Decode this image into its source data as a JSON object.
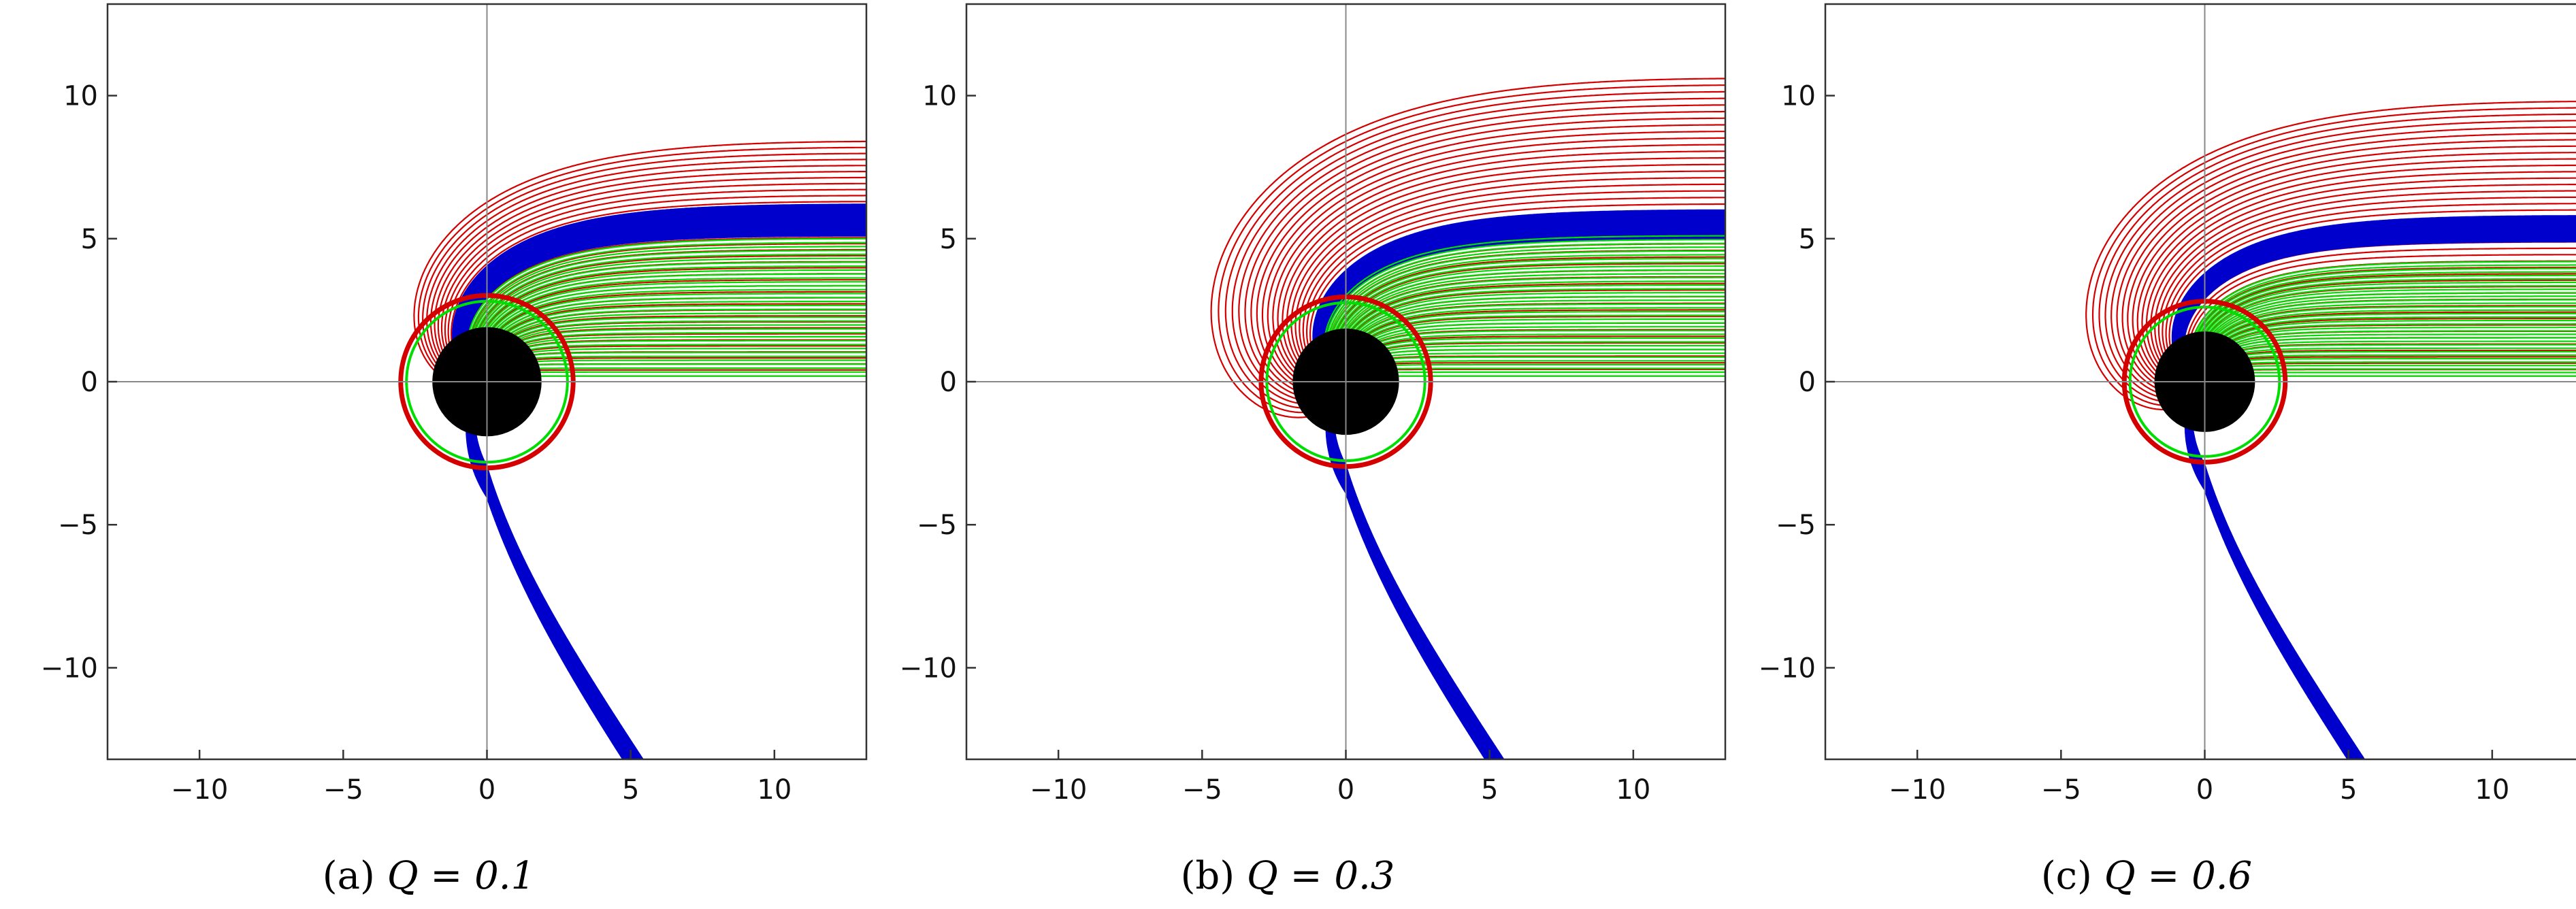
{
  "chart_data": [
    {
      "type": "line",
      "panel_tag": "(a)",
      "caption_expr": "Q = 0.1",
      "Q": 0.1,
      "xlim": [
        -13.2,
        13.2
      ],
      "ylim": [
        -13.2,
        13.2
      ],
      "xticks": [
        -10,
        -5,
        0,
        5,
        10
      ],
      "yticks": [
        -10,
        -5,
        0,
        5,
        10
      ],
      "xtick_labels": [
        "−10",
        "−5",
        "0",
        "5",
        "10"
      ],
      "ytick_labels": [
        "−10",
        "−5",
        "0",
        "5",
        "10"
      ],
      "horizon_radius": 1.9,
      "photon_ring_radius": 3.0,
      "colors": {
        "family_a": "#d40000",
        "family_b": "#0000cc",
        "family_c": "#00dd00",
        "horizon": "#000000"
      },
      "series": [
        {
          "color": "#d40000",
          "impact_min": 0.2,
          "impact_max": 8.4,
          "count": 40
        },
        {
          "color": "#0000cc",
          "impact_min": 5.1,
          "impact_max": 6.2,
          "count": 55
        },
        {
          "color": "#00dd00",
          "impact_min": 0.2,
          "impact_max": 5.0,
          "count": 36
        }
      ]
    },
    {
      "type": "line",
      "panel_tag": "(b)",
      "caption_expr": "Q = 0.3",
      "Q": 0.3,
      "xlim": [
        -13.2,
        13.2
      ],
      "ylim": [
        -13.2,
        13.2
      ],
      "xticks": [
        -10,
        -5,
        0,
        5,
        10
      ],
      "yticks": [
        -10,
        -5,
        0,
        5,
        10
      ],
      "xtick_labels": [
        "−10",
        "−5",
        "0",
        "5",
        "10"
      ],
      "ytick_labels": [
        "−10",
        "−5",
        "0",
        "5",
        "10"
      ],
      "horizon_radius": 1.85,
      "photon_ring_radius": 2.95,
      "colors": {
        "family_a": "#d40000",
        "family_b": "#0000cc",
        "family_c": "#00dd00",
        "horizon": "#000000"
      },
      "series": [
        {
          "color": "#d40000",
          "impact_min": 0.2,
          "impact_max": 10.6,
          "count": 46
        },
        {
          "color": "#0000cc",
          "impact_min": 5.0,
          "impact_max": 6.0,
          "count": 60
        },
        {
          "color": "#00dd00",
          "impact_min": 0.2,
          "impact_max": 5.1,
          "count": 38
        }
      ]
    },
    {
      "type": "line",
      "panel_tag": "(c)",
      "caption_expr": "Q = 0.6",
      "Q": 0.6,
      "xlim": [
        -13.2,
        13.2
      ],
      "ylim": [
        -13.2,
        13.2
      ],
      "xticks": [
        -10,
        -5,
        0,
        5,
        10
      ],
      "yticks": [
        -10,
        -5,
        0,
        5,
        10
      ],
      "xtick_labels": [
        "−10",
        "−5",
        "0",
        "5",
        "10"
      ],
      "ytick_labels": [
        "−10",
        "−5",
        "0",
        "5",
        "10"
      ],
      "horizon_radius": 1.75,
      "photon_ring_radius": 2.8,
      "colors": {
        "family_a": "#d40000",
        "family_b": "#0000cc",
        "family_c": "#00dd00",
        "horizon": "#000000"
      },
      "series": [
        {
          "color": "#d40000",
          "impact_min": 0.2,
          "impact_max": 9.8,
          "count": 44
        },
        {
          "color": "#0000cc",
          "impact_min": 4.9,
          "impact_max": 5.8,
          "count": 60
        },
        {
          "color": "#00dd00",
          "impact_min": 0.2,
          "impact_max": 4.2,
          "count": 34
        }
      ]
    }
  ]
}
